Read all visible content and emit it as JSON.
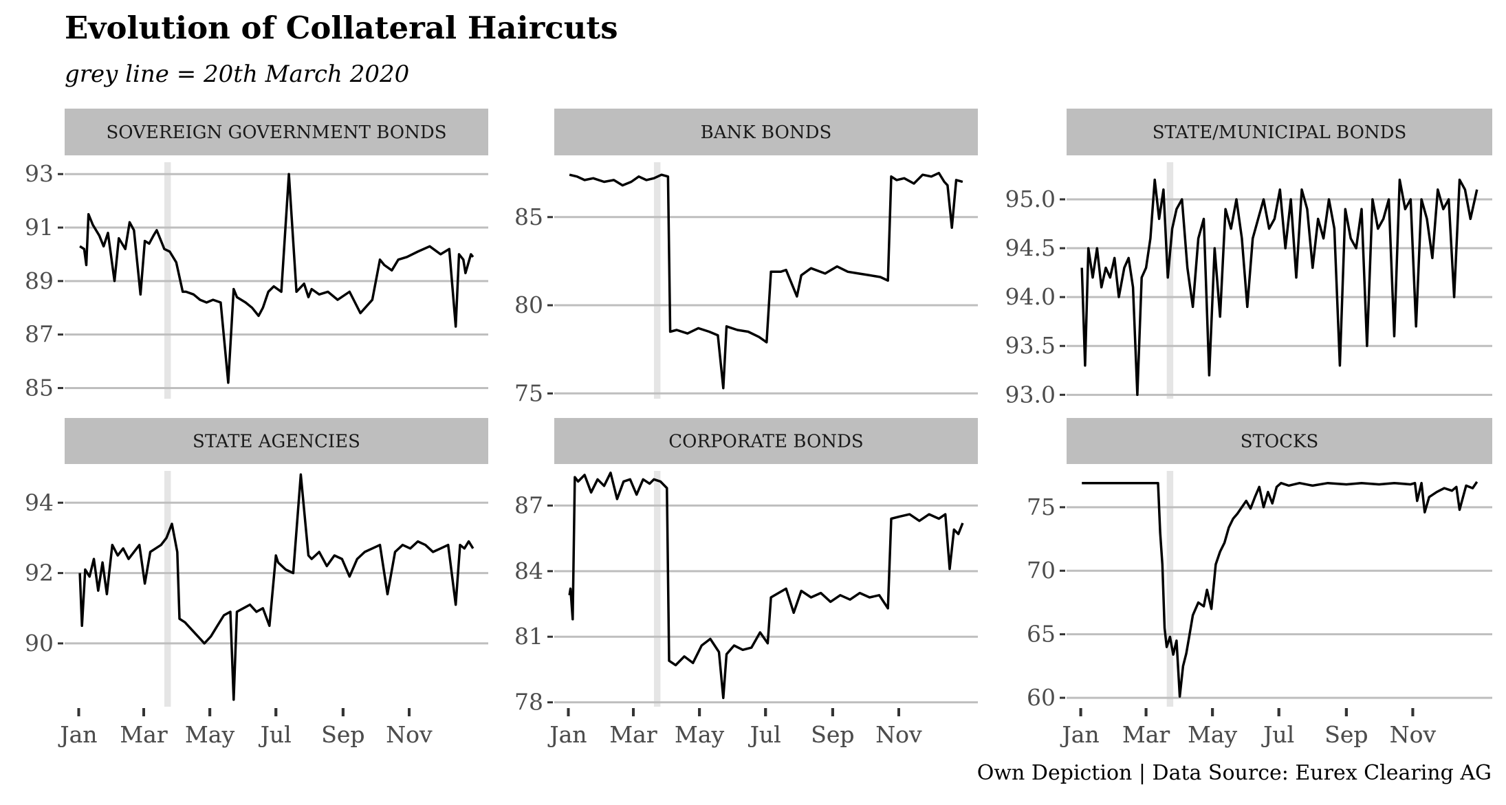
{
  "header": {
    "title": "Evolution of Collateral Haircuts",
    "subtitle": "grey line = 20th March 2020"
  },
  "caption": "Own Depiction | Data Source: Eurex Clearing AG",
  "colors": {
    "line": "#000000",
    "strip_background": "#bebebe",
    "gridline": "#bebebe",
    "highlight_band": "#e5e5e5",
    "axis_text": "#4d4d4d"
  },
  "chart_data": [
    {
      "type": "line",
      "title": "SOVEREIGN GOVERNMENT BONDS",
      "ylim": [
        84.6,
        93.7
      ],
      "yticks": [
        85,
        87,
        89,
        91,
        93
      ],
      "ytick_labels": [
        "85",
        "87",
        "89",
        "91",
        "93"
      ],
      "xticks": [
        "Jan",
        "Mar",
        "May",
        "Jul",
        "Sep",
        "Nov"
      ],
      "highlight": "20th March 2020",
      "x": [
        "2020-01-02",
        "2020-01-06",
        "2020-01-08",
        "2020-01-10",
        "2020-01-14",
        "2020-01-20",
        "2020-01-24",
        "2020-01-28",
        "2020-02-03",
        "2020-02-07",
        "2020-02-13",
        "2020-02-17",
        "2020-02-21",
        "2020-02-27",
        "2020-03-02",
        "2020-03-06",
        "2020-03-10",
        "2020-03-13",
        "2020-03-18",
        "2020-03-20",
        "2020-03-25",
        "2020-03-31",
        "2020-04-06",
        "2020-04-09",
        "2020-04-16",
        "2020-04-22",
        "2020-04-28",
        "2020-05-04",
        "2020-05-11",
        "2020-05-18",
        "2020-05-23",
        "2020-05-26",
        "2020-06-03",
        "2020-06-09",
        "2020-06-15",
        "2020-06-19",
        "2020-06-24",
        "2020-06-29",
        "2020-07-06",
        "2020-07-13",
        "2020-07-20",
        "2020-07-27",
        "2020-07-31",
        "2020-08-03",
        "2020-08-10",
        "2020-08-18",
        "2020-08-27",
        "2020-09-07",
        "2020-09-17",
        "2020-09-28",
        "2020-10-05",
        "2020-10-09",
        "2020-10-16",
        "2020-10-22",
        "2020-10-30",
        "2020-11-09",
        "2020-11-20",
        "2020-11-30",
        "2020-12-08",
        "2020-12-14",
        "2020-12-17",
        "2020-12-21",
        "2020-12-23",
        "2020-12-28",
        "2020-12-30"
      ],
      "y": [
        90.3,
        90.2,
        89.6,
        91.5,
        91.1,
        90.7,
        90.3,
        90.8,
        89.0,
        90.6,
        90.2,
        91.2,
        90.9,
        88.5,
        90.5,
        90.4,
        90.7,
        90.9,
        90.4,
        90.2,
        90.1,
        89.7,
        88.6,
        88.6,
        88.5,
        88.3,
        88.2,
        88.3,
        88.2,
        85.2,
        88.7,
        88.4,
        88.2,
        88.0,
        87.7,
        88.0,
        88.6,
        88.8,
        88.6,
        93.0,
        88.6,
        88.9,
        88.4,
        88.7,
        88.5,
        88.6,
        88.3,
        88.6,
        87.8,
        88.3,
        89.8,
        89.6,
        89.4,
        89.8,
        89.9,
        90.1,
        90.3,
        90.0,
        90.2,
        87.3,
        90.0,
        89.8,
        89.3,
        90.0,
        89.9
      ]
    },
    {
      "type": "line",
      "title": "BANK BONDS",
      "ylim": [
        74.7,
        88.5
      ],
      "yticks": [
        75,
        80,
        85
      ],
      "ytick_labels": [
        "75",
        "80",
        "85"
      ],
      "xticks": [
        "Jan",
        "Mar",
        "May",
        "Jul",
        "Sep",
        "Nov"
      ],
      "highlight": "20th March 2020",
      "x": [
        "2020-01-02",
        "2020-01-09",
        "2020-01-16",
        "2020-01-24",
        "2020-02-03",
        "2020-02-12",
        "2020-02-20",
        "2020-02-28",
        "2020-03-06",
        "2020-03-13",
        "2020-03-20",
        "2020-03-27",
        "2020-04-02",
        "2020-04-04",
        "2020-04-10",
        "2020-04-20",
        "2020-04-30",
        "2020-05-10",
        "2020-05-18",
        "2020-05-23",
        "2020-05-26",
        "2020-06-05",
        "2020-06-15",
        "2020-06-25",
        "2020-07-02",
        "2020-07-06",
        "2020-07-15",
        "2020-07-20",
        "2020-07-30",
        "2020-08-03",
        "2020-08-12",
        "2020-08-25",
        "2020-09-05",
        "2020-09-15",
        "2020-09-25",
        "2020-10-05",
        "2020-10-15",
        "2020-10-22",
        "2020-10-25",
        "2020-10-30",
        "2020-11-06",
        "2020-11-15",
        "2020-11-23",
        "2020-12-01",
        "2020-12-08",
        "2020-12-13",
        "2020-12-16",
        "2020-12-20",
        "2020-12-24",
        "2020-12-30"
      ],
      "y": [
        87.4,
        87.3,
        87.1,
        87.2,
        87.0,
        87.1,
        86.8,
        87.0,
        87.3,
        87.1,
        87.2,
        87.4,
        87.3,
        78.5,
        78.6,
        78.4,
        78.7,
        78.5,
        78.3,
        75.3,
        78.8,
        78.6,
        78.5,
        78.2,
        77.9,
        81.9,
        81.9,
        82.0,
        80.5,
        81.7,
        82.1,
        81.8,
        82.2,
        81.9,
        81.8,
        81.7,
        81.6,
        81.4,
        87.3,
        87.1,
        87.2,
        86.9,
        87.4,
        87.3,
        87.5,
        87.0,
        86.8,
        84.4,
        87.1,
        87.0
      ]
    },
    {
      "type": "line",
      "title": "STATE/MUNICIPAL BONDS",
      "ylim": [
        92.96,
        95.45
      ],
      "yticks": [
        93.0,
        93.5,
        94.0,
        94.5,
        95.0
      ],
      "ytick_labels": [
        "93.0",
        "93.5",
        "94.0",
        "94.5",
        "95.0"
      ],
      "xticks": [
        "Jan",
        "Mar",
        "May",
        "Jul",
        "Sep",
        "Nov"
      ],
      "highlight": "20th March 2020",
      "x": [
        "2020-01-02",
        "2020-01-05",
        "2020-01-08",
        "2020-01-12",
        "2020-01-16",
        "2020-01-20",
        "2020-01-24",
        "2020-01-28",
        "2020-02-01",
        "2020-02-05",
        "2020-02-10",
        "2020-02-14",
        "2020-02-18",
        "2020-02-22",
        "2020-02-26",
        "2020-03-01",
        "2020-03-05",
        "2020-03-09",
        "2020-03-13",
        "2020-03-17",
        "2020-03-21",
        "2020-03-25",
        "2020-03-29",
        "2020-04-03",
        "2020-04-08",
        "2020-04-13",
        "2020-04-18",
        "2020-04-23",
        "2020-04-28",
        "2020-05-03",
        "2020-05-08",
        "2020-05-13",
        "2020-05-18",
        "2020-05-23",
        "2020-05-28",
        "2020-06-02",
        "2020-06-07",
        "2020-06-12",
        "2020-06-17",
        "2020-06-22",
        "2020-06-27",
        "2020-07-02",
        "2020-07-07",
        "2020-07-12",
        "2020-07-17",
        "2020-07-22",
        "2020-07-27",
        "2020-08-01",
        "2020-08-06",
        "2020-08-11",
        "2020-08-16",
        "2020-08-21",
        "2020-08-26",
        "2020-08-31",
        "2020-09-05",
        "2020-09-10",
        "2020-09-15",
        "2020-09-20",
        "2020-09-25",
        "2020-09-30",
        "2020-10-05",
        "2020-10-10",
        "2020-10-15",
        "2020-10-20",
        "2020-10-25",
        "2020-10-30",
        "2020-11-04",
        "2020-11-09",
        "2020-11-14",
        "2020-11-19",
        "2020-11-24",
        "2020-11-29",
        "2020-12-04",
        "2020-12-09",
        "2020-12-14",
        "2020-12-19",
        "2020-12-24",
        "2020-12-30"
      ],
      "y": [
        94.3,
        93.3,
        94.5,
        94.2,
        94.5,
        94.1,
        94.3,
        94.2,
        94.4,
        94.0,
        94.3,
        94.4,
        94.1,
        93.0,
        94.2,
        94.3,
        94.6,
        95.2,
        94.8,
        95.1,
        94.2,
        94.7,
        94.9,
        95.0,
        94.3,
        93.9,
        94.6,
        94.8,
        93.2,
        94.5,
        93.8,
        94.9,
        94.7,
        95.0,
        94.6,
        93.9,
        94.6,
        94.8,
        95.0,
        94.7,
        94.8,
        95.1,
        94.5,
        95.0,
        94.2,
        95.1,
        94.9,
        94.3,
        94.8,
        94.6,
        95.0,
        94.7,
        93.3,
        94.9,
        94.6,
        94.5,
        94.9,
        93.5,
        95.0,
        94.7,
        94.8,
        95.0,
        93.6,
        95.2,
        94.9,
        95.0,
        93.7,
        95.0,
        94.8,
        94.4,
        95.1,
        94.9,
        95.0,
        94.0,
        95.2,
        95.1,
        94.8,
        95.1
      ]
    },
    {
      "type": "line",
      "title": "STATE AGENCIES",
      "ylim": [
        88.2,
        95.1
      ],
      "yticks": [
        90,
        92,
        94
      ],
      "ytick_labels": [
        "90",
        "92",
        "94"
      ],
      "xticks": [
        "Jan",
        "Mar",
        "May",
        "Jul",
        "Sep",
        "Nov"
      ],
      "highlight": "20th March 2020",
      "x": [
        "2020-01-02",
        "2020-01-04",
        "2020-01-07",
        "2020-01-11",
        "2020-01-15",
        "2020-01-19",
        "2020-01-23",
        "2020-01-27",
        "2020-02-01",
        "2020-02-06",
        "2020-02-11",
        "2020-02-16",
        "2020-02-21",
        "2020-02-26",
        "2020-03-02",
        "2020-03-07",
        "2020-03-12",
        "2020-03-17",
        "2020-03-22",
        "2020-03-27",
        "2020-04-01",
        "2020-04-03",
        "2020-04-08",
        "2020-04-14",
        "2020-04-20",
        "2020-04-26",
        "2020-05-02",
        "2020-05-08",
        "2020-05-14",
        "2020-05-20",
        "2020-05-23",
        "2020-05-26",
        "2020-06-01",
        "2020-06-07",
        "2020-06-13",
        "2020-06-19",
        "2020-06-25",
        "2020-07-01",
        "2020-07-03",
        "2020-07-10",
        "2020-07-17",
        "2020-07-24",
        "2020-07-31",
        "2020-08-03",
        "2020-08-10",
        "2020-08-17",
        "2020-08-24",
        "2020-08-31",
        "2020-09-07",
        "2020-09-14",
        "2020-09-21",
        "2020-09-28",
        "2020-10-05",
        "2020-10-12",
        "2020-10-19",
        "2020-10-26",
        "2020-11-02",
        "2020-11-09",
        "2020-11-16",
        "2020-11-23",
        "2020-11-30",
        "2020-12-07",
        "2020-12-14",
        "2020-12-18",
        "2020-12-22",
        "2020-12-26",
        "2020-12-30"
      ],
      "y": [
        92.0,
        90.5,
        92.1,
        91.9,
        92.4,
        91.5,
        92.3,
        91.4,
        92.8,
        92.5,
        92.7,
        92.4,
        92.6,
        92.8,
        91.7,
        92.6,
        92.7,
        92.8,
        93.0,
        93.4,
        92.6,
        90.7,
        90.6,
        90.4,
        90.2,
        90.0,
        90.2,
        90.5,
        90.8,
        90.9,
        88.4,
        90.9,
        91.0,
        91.1,
        90.9,
        91.0,
        90.5,
        92.5,
        92.3,
        92.1,
        92.0,
        94.8,
        92.5,
        92.4,
        92.6,
        92.2,
        92.5,
        92.4,
        91.9,
        92.4,
        92.6,
        92.7,
        92.8,
        91.4,
        92.6,
        92.8,
        92.7,
        92.9,
        92.8,
        92.6,
        92.7,
        92.8,
        91.1,
        92.8,
        92.7,
        92.9,
        92.7
      ]
    },
    {
      "type": "line",
      "title": "CORPORATE BONDS",
      "ylim": [
        77.8,
        88.9
      ],
      "yticks": [
        78,
        81,
        84,
        87
      ],
      "ytick_labels": [
        "78",
        "81",
        "84",
        "87"
      ],
      "xticks": [
        "Jan",
        "Mar",
        "May",
        "Jul",
        "Sep",
        "Nov"
      ],
      "highlight": "20th March 2020",
      "x": [
        "2020-01-02",
        "2020-01-03",
        "2020-01-05",
        "2020-01-07",
        "2020-01-10",
        "2020-01-16",
        "2020-01-22",
        "2020-01-28",
        "2020-02-03",
        "2020-02-09",
        "2020-02-15",
        "2020-02-21",
        "2020-02-27",
        "2020-03-04",
        "2020-03-10",
        "2020-03-16",
        "2020-03-20",
        "2020-03-26",
        "2020-04-01",
        "2020-04-03",
        "2020-04-09",
        "2020-04-17",
        "2020-04-25",
        "2020-05-03",
        "2020-05-11",
        "2020-05-19",
        "2020-05-23",
        "2020-05-26",
        "2020-06-02",
        "2020-06-10",
        "2020-06-18",
        "2020-06-26",
        "2020-07-03",
        "2020-07-06",
        "2020-07-13",
        "2020-07-20",
        "2020-07-27",
        "2020-08-03",
        "2020-08-12",
        "2020-08-21",
        "2020-08-30",
        "2020-09-08",
        "2020-09-17",
        "2020-09-26",
        "2020-10-05",
        "2020-10-14",
        "2020-10-22",
        "2020-10-25",
        "2020-11-02",
        "2020-11-11",
        "2020-11-20",
        "2020-11-29",
        "2020-12-08",
        "2020-12-14",
        "2020-12-18",
        "2020-12-22",
        "2020-12-26",
        "2020-12-30"
      ],
      "y": [
        82.9,
        83.2,
        81.8,
        88.3,
        88.1,
        88.4,
        87.6,
        88.2,
        87.9,
        88.5,
        87.3,
        88.1,
        88.2,
        87.5,
        88.2,
        88.0,
        88.2,
        88.1,
        87.8,
        79.9,
        79.7,
        80.1,
        79.8,
        80.6,
        80.9,
        80.3,
        78.2,
        80.2,
        80.6,
        80.4,
        80.5,
        81.2,
        80.7,
        82.8,
        83.0,
        83.2,
        82.1,
        83.1,
        82.8,
        83.0,
        82.6,
        82.9,
        82.7,
        83.0,
        82.8,
        82.9,
        82.3,
        86.4,
        86.5,
        86.6,
        86.3,
        86.6,
        86.4,
        86.6,
        84.1,
        85.9,
        85.7,
        86.2
      ]
    },
    {
      "type": "line",
      "title": "STOCKS",
      "ylim": [
        59.3,
        78.4
      ],
      "yticks": [
        60,
        65,
        70,
        75
      ],
      "ytick_labels": [
        "60",
        "65",
        "70",
        "75"
      ],
      "xticks": [
        "Jan",
        "Mar",
        "May",
        "Jul",
        "Sep",
        "Nov"
      ],
      "highlight": "20th March 2020",
      "x": [
        "2020-01-02",
        "2020-02-01",
        "2020-03-03",
        "2020-03-06",
        "2020-03-09",
        "2020-03-12",
        "2020-03-14",
        "2020-03-16",
        "2020-03-18",
        "2020-03-20",
        "2020-03-23",
        "2020-03-26",
        "2020-03-29",
        "2020-04-01",
        "2020-04-04",
        "2020-04-07",
        "2020-04-10",
        "2020-04-13",
        "2020-04-18",
        "2020-04-23",
        "2020-04-26",
        "2020-04-30",
        "2020-05-04",
        "2020-05-08",
        "2020-05-12",
        "2020-05-16",
        "2020-05-20",
        "2020-05-24",
        "2020-05-28",
        "2020-06-01",
        "2020-06-05",
        "2020-06-09",
        "2020-06-13",
        "2020-06-17",
        "2020-06-21",
        "2020-06-25",
        "2020-06-29",
        "2020-07-03",
        "2020-07-10",
        "2020-07-20",
        "2020-08-01",
        "2020-08-15",
        "2020-09-01",
        "2020-09-15",
        "2020-10-01",
        "2020-10-15",
        "2020-10-30",
        "2020-11-03",
        "2020-11-05",
        "2020-11-09",
        "2020-11-12",
        "2020-11-16",
        "2020-11-23",
        "2020-11-30",
        "2020-12-07",
        "2020-12-11",
        "2020-12-14",
        "2020-12-20",
        "2020-12-26",
        "2020-12-30"
      ],
      "y": [
        76.9,
        76.9,
        76.9,
        76.9,
        76.9,
        76.9,
        73.0,
        70.5,
        65.5,
        64.0,
        64.8,
        63.4,
        64.5,
        60.1,
        62.5,
        63.5,
        65.0,
        66.5,
        67.5,
        67.2,
        68.5,
        67.0,
        70.5,
        71.5,
        72.2,
        73.4,
        74.1,
        74.5,
        75.0,
        75.5,
        74.9,
        75.8,
        76.6,
        75.0,
        76.2,
        75.3,
        76.6,
        76.9,
        76.7,
        76.9,
        76.7,
        76.9,
        76.8,
        76.9,
        76.8,
        76.9,
        76.8,
        76.9,
        75.5,
        76.9,
        74.6,
        75.8,
        76.2,
        76.5,
        76.3,
        76.6,
        74.8,
        76.7,
        76.5,
        77.0
      ]
    }
  ]
}
